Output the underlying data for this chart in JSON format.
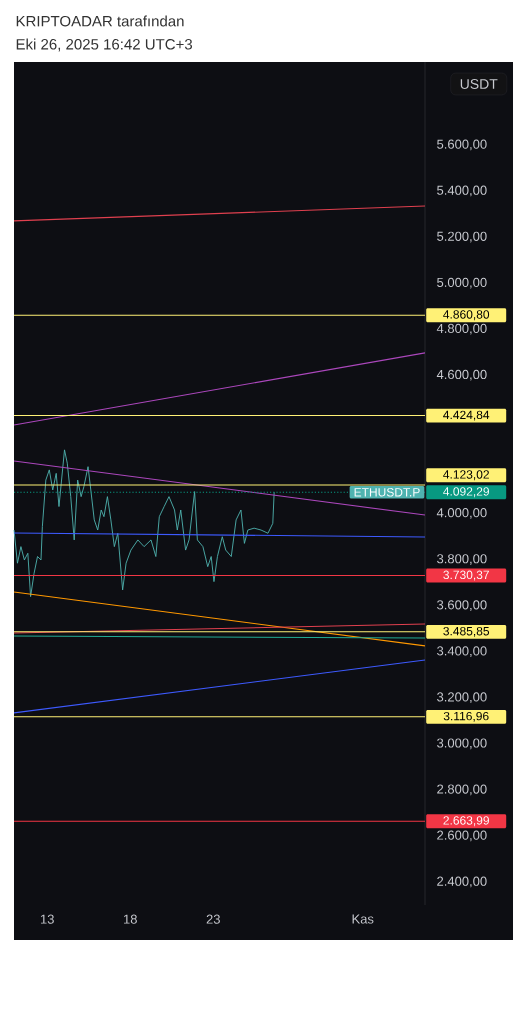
{
  "chart_data": {
    "type": "line",
    "title": "KRIPTOADAR tarafından",
    "subtitle": "Eki 26, 2025 16:42 UTC+3",
    "annotations": [
      "USDT"
    ],
    "xlim": [
      "2025-10-11T00:00",
      "2025-11-04T18:00"
    ],
    "xticks": [
      {
        "value": "2025-10-13",
        "label": "13"
      },
      {
        "value": "2025-10-18",
        "label": "18"
      },
      {
        "value": "2025-10-23",
        "label": "23"
      },
      {
        "value": "2025-11-01",
        "label": "Kas"
      }
    ],
    "ylim": [
      2300,
      5960
    ],
    "yticks": [
      {
        "value": 2400,
        "label": "2.400,00"
      },
      {
        "value": 2600,
        "label": "2.600,00"
      },
      {
        "value": 2800,
        "label": "2.800,00"
      },
      {
        "value": 3000,
        "label": "3.000,00"
      },
      {
        "value": 3200,
        "label": "3.200,00"
      },
      {
        "value": 3400,
        "label": "3.400,00"
      },
      {
        "value": 3600,
        "label": "3.600,00"
      },
      {
        "value": 3800,
        "label": "3.800,00"
      },
      {
        "value": 4000,
        "label": "4.000,00"
      },
      {
        "value": 4600,
        "label": "4.600,00"
      },
      {
        "value": 4800,
        "label": "4.800,00"
      },
      {
        "value": 5000,
        "label": "5.000,00"
      },
      {
        "value": 5200,
        "label": "5.200,00"
      },
      {
        "value": 5400,
        "label": "5.400,00"
      },
      {
        "value": 5600,
        "label": "5.600,00"
      }
    ],
    "series": [
      {
        "name": "ETHUSDT.P",
        "color": "#4fb3b0",
        "x": [
          "2025-10-11T00:00",
          "2025-10-11T05:00",
          "2025-10-11T10:00",
          "2025-10-11T15:00",
          "2025-10-11T20:00",
          "2025-10-12T00:00",
          "2025-10-12T05:00",
          "2025-10-12T10:00",
          "2025-10-12T15:00",
          "2025-10-12T17:00",
          "2025-10-12T22:00",
          "2025-10-13T03:00",
          "2025-10-13T08:00",
          "2025-10-13T13:00",
          "2025-10-13T17:00",
          "2025-10-14T01:00",
          "2025-10-14T05:00",
          "2025-10-14T10:00",
          "2025-10-14T15:00",
          "2025-10-14T20:00",
          "2025-10-15T01:00",
          "2025-10-15T05:00",
          "2025-10-15T11:00",
          "2025-10-15T15:00",
          "2025-10-15T20:00",
          "2025-10-16T01:00",
          "2025-10-16T06:00",
          "2025-10-16T10:00",
          "2025-10-16T15:00",
          "2025-10-16T20:00",
          "2025-10-17T01:00",
          "2025-10-17T06:00",
          "2025-10-17T13:00",
          "2025-10-17T18:00",
          "2025-10-18T01:00",
          "2025-10-18T11:00",
          "2025-10-18T20:00",
          "2025-10-19T06:00",
          "2025-10-19T13:00",
          "2025-10-19T18:00",
          "2025-10-20T01:00",
          "2025-10-20T08:00",
          "2025-10-20T16:00",
          "2025-10-20T20:00",
          "2025-10-21T01:00",
          "2025-10-21T08:00",
          "2025-10-21T13:00",
          "2025-10-21T21:00",
          "2025-10-22T01:00",
          "2025-10-22T09:00",
          "2025-10-22T16:00",
          "2025-10-22T21:00",
          "2025-10-23T01:00",
          "2025-10-23T06:00",
          "2025-10-23T13:00",
          "2025-10-23T18:00",
          "2025-10-24T02:00",
          "2025-10-24T09:00",
          "2025-10-24T16:00",
          "2025-10-24T21:00",
          "2025-10-25T02:00",
          "2025-10-25T11:00",
          "2025-10-25T21:00",
          "2025-10-26T07:00",
          "2025-10-26T14:00",
          "2025-10-26T16:00"
        ],
        "values": [
          3928,
          3784,
          3856,
          3798,
          3827,
          3639,
          3740,
          3813,
          3798,
          3943,
          4145,
          4189,
          4102,
          4174,
          4030,
          4276,
          4218,
          4073,
          3885,
          4145,
          4073,
          4116,
          4203,
          4102,
          3972,
          3928,
          4015,
          3986,
          4073,
          3972,
          3856,
          3914,
          3668,
          3784,
          3841,
          3885,
          3856,
          3885,
          3813,
          3986,
          4030,
          4073,
          4015,
          3928,
          4015,
          3841,
          3885,
          4095,
          3885,
          3856,
          3769,
          3813,
          3704,
          3813,
          3899,
          3841,
          3813,
          3972,
          4015,
          3870,
          3928,
          3936,
          3928,
          3914,
          3957,
          4092
        ]
      },
      {
        "type": "line",
        "color": "#e0404f",
        "x": [
          "2025-10-11T00:00",
          "2025-11-04T18:00"
        ],
        "values": [
          5270,
          5335
        ]
      },
      {
        "type": "line",
        "color": "#ab47bc",
        "x": [
          "2025-10-11T00:00",
          "2025-11-04T18:00"
        ],
        "values": [
          4384,
          4697
        ]
      },
      {
        "type": "line",
        "color": "#ab47bc",
        "x": [
          "2025-10-11T00:00",
          "2025-11-04T18:00"
        ],
        "values": [
          4228,
          3993
        ]
      },
      {
        "type": "line",
        "color": "#3d5afe",
        "x": [
          "2025-10-11T00:00",
          "2025-11-04T18:00"
        ],
        "values": [
          3915,
          3898
        ]
      },
      {
        "type": "line",
        "color": "#ff9800",
        "x": [
          "2025-10-11T00:00",
          "2025-11-04T18:00"
        ],
        "values": [
          3659,
          3425
        ]
      },
      {
        "type": "line",
        "color": "#e0404f",
        "x": [
          "2025-10-11T00:00",
          "2025-11-04T18:00"
        ],
        "values": [
          3481,
          3520
        ]
      },
      {
        "type": "line",
        "color": "#22ab94",
        "x": [
          "2025-10-11T00:00",
          "2025-11-04T18:00"
        ],
        "values": [
          3468,
          3459
        ]
      },
      {
        "type": "line",
        "color": "#3d5afe",
        "x": [
          "2025-10-11T00:00",
          "2025-11-04T18:00"
        ],
        "values": [
          3134,
          3364
        ]
      }
    ],
    "ref_lines": [
      {
        "axis": "y",
        "value": 4860.8,
        "label": "4.860,80",
        "color": "#fff176"
      },
      {
        "axis": "y",
        "value": 4424.84,
        "label": "4.424,84",
        "color": "#fff176"
      },
      {
        "axis": "y",
        "value": 4123.02,
        "label": "4.123,02",
        "color": "#fff176"
      },
      {
        "axis": "y",
        "value": 4092.29,
        "label": "4.092,29",
        "color": "#089981",
        "line_style": "dotted"
      },
      {
        "axis": "y",
        "value": 3730.37,
        "label": "3.730,37",
        "color": "#f23645"
      },
      {
        "axis": "y",
        "value": 3485.85,
        "label": "3.485,85",
        "color": "#fff176"
      },
      {
        "axis": "y",
        "value": 3116.96,
        "label": "3.116,96",
        "color": "#fff176"
      },
      {
        "axis": "y",
        "value": 2663.99,
        "label": "2.663,99",
        "color": "#f23645"
      }
    ]
  }
}
